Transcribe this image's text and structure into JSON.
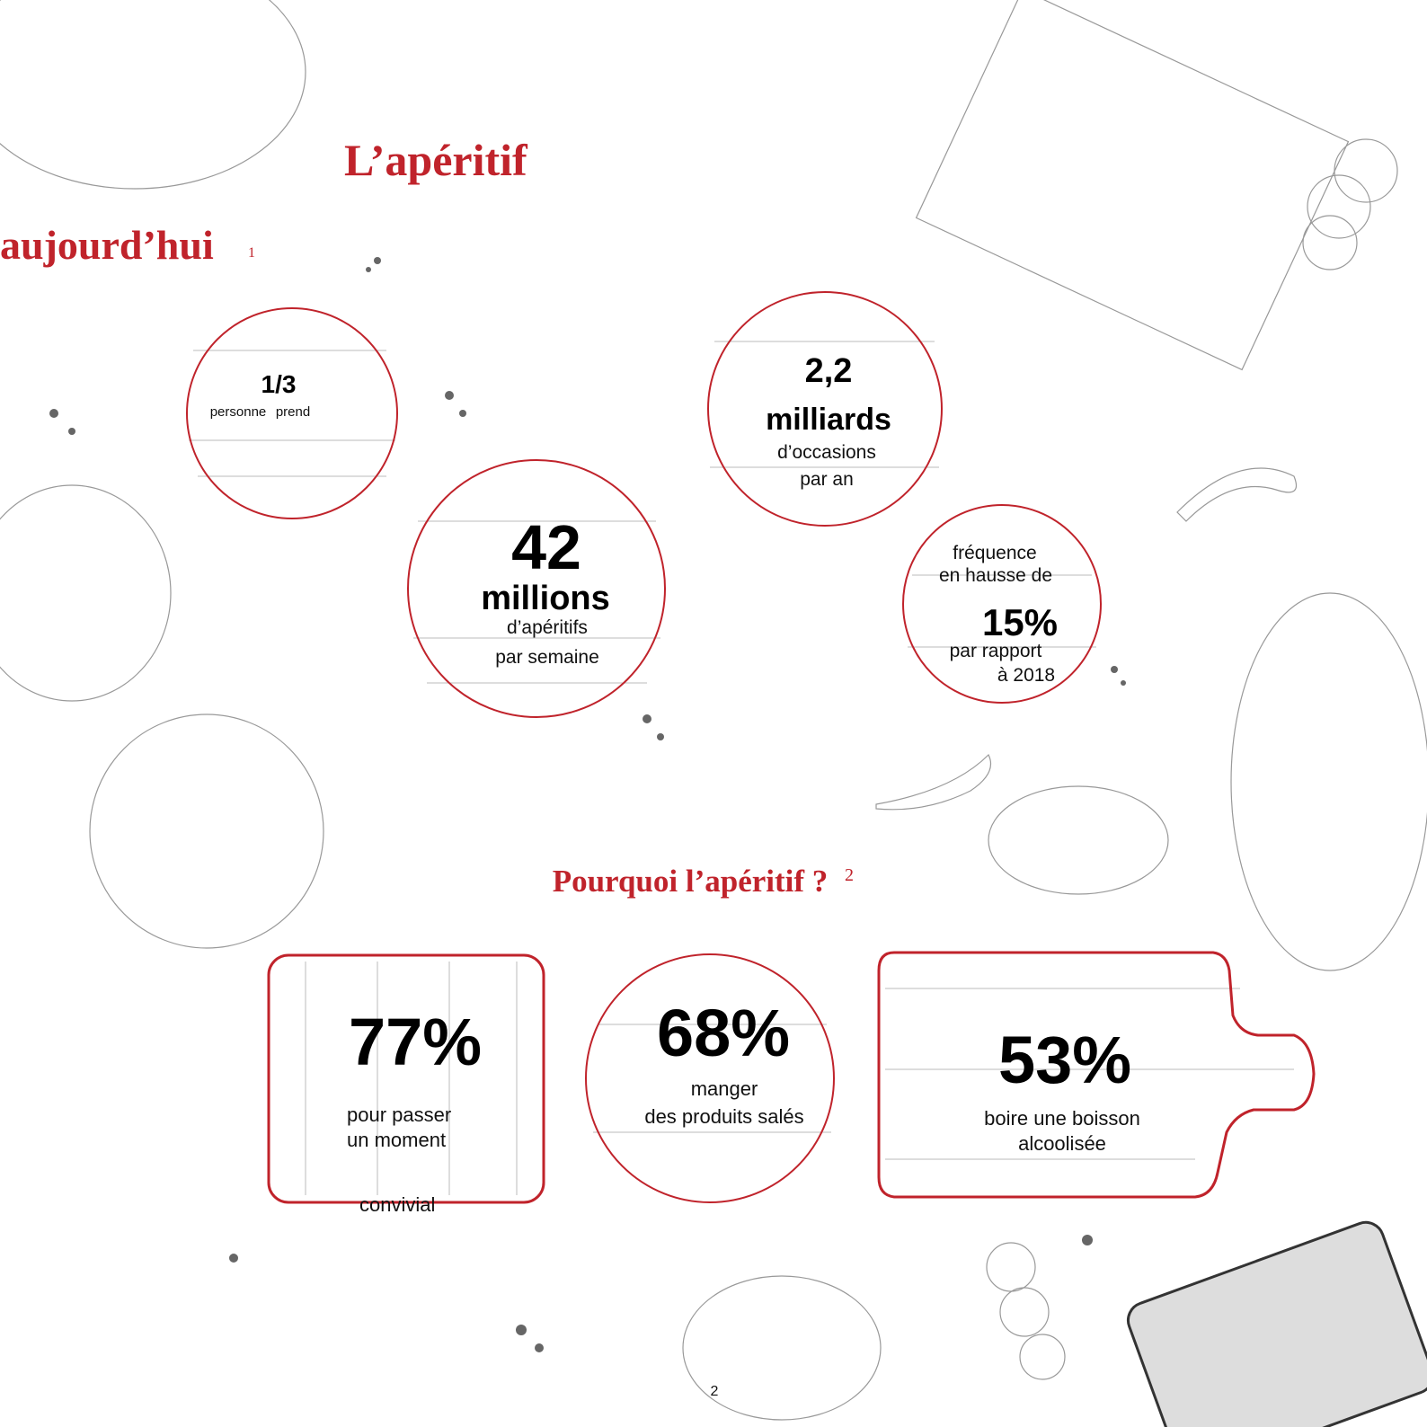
{
  "title": {
    "line1": "L’apéritif",
    "line2": "aujourd’hui",
    "note": "1"
  },
  "stats": [
    {
      "figure": "1/3",
      "lines": [
        "personne",
        "prend"
      ]
    },
    {
      "figure": "2,2",
      "unit": "milliards",
      "lines": [
        "d’occasions",
        "par an"
      ]
    },
    {
      "figure": "42",
      "unit": "millions",
      "lines": [
        "d’apéritifs",
        "par semaine"
      ]
    },
    {
      "intro": [
        "fréquence",
        "en hausse de"
      ],
      "figure": "15%",
      "lines": [
        "par rapport",
        "à 2018"
      ]
    }
  ],
  "section": {
    "title": "Pourquoi l’apéritif ?",
    "note": "2"
  },
  "reasons": [
    {
      "figure": "77%",
      "lines": [
        "pour passer",
        "un moment",
        "convivial"
      ]
    },
    {
      "figure": "68%",
      "lines": [
        "manger",
        "des produits salés"
      ]
    },
    {
      "figure": "53%",
      "lines": [
        "boire une boisson",
        "alcoolisée"
      ]
    }
  ],
  "page_number": "2"
}
